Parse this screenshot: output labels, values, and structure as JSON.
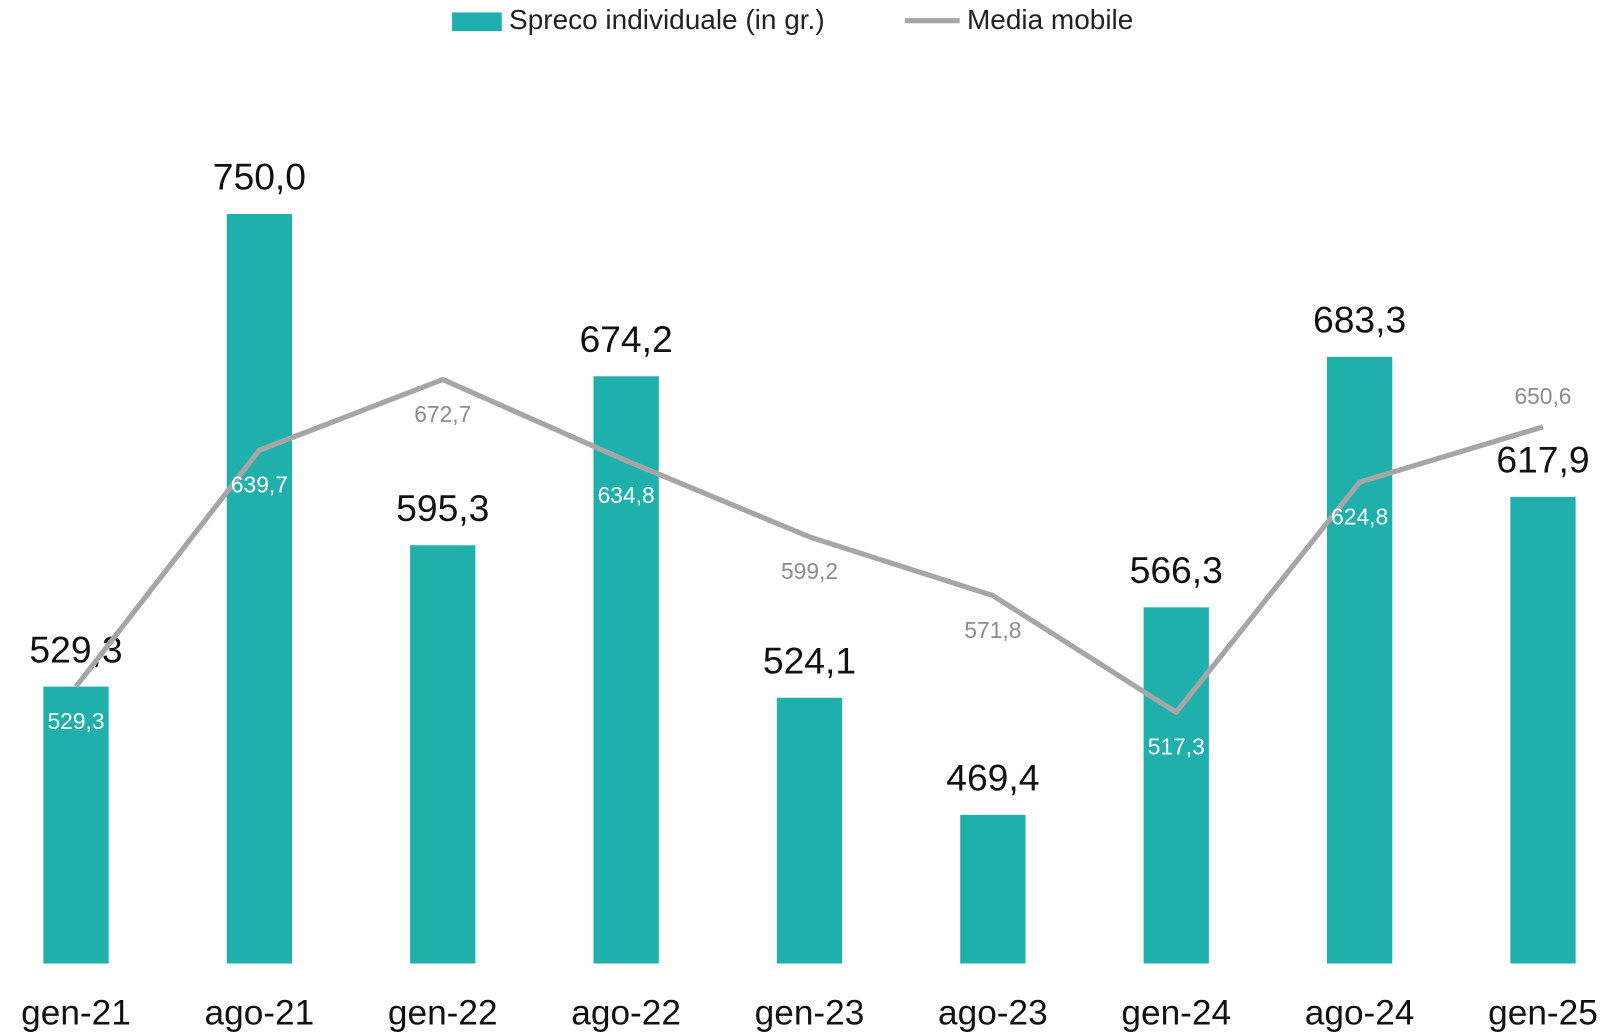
{
  "chart_data": {
    "type": "bar_line",
    "categories": [
      "gen-21",
      "ago-21",
      "gen-22",
      "ago-22",
      "gen-23",
      "ago-23",
      "gen-24",
      "ago-24",
      "gen-25"
    ],
    "series": [
      {
        "name": "Spreco individuale (in gr.)",
        "type": "bar",
        "color": "#1fb0ab",
        "values": [
          529.3,
          750.0,
          595.3,
          674.2,
          524.1,
          469.4,
          566.3,
          683.3,
          617.9
        ],
        "value_labels": [
          "529,3",
          "750,0",
          "595,3",
          "674,2",
          "524,1",
          "469,4",
          "566,3",
          "683,3",
          "617,9"
        ]
      },
      {
        "name": "Media mobile",
        "type": "line",
        "color": "#a6a6a6",
        "values": [
          529.3,
          639.7,
          672.7,
          634.8,
          599.2,
          571.8,
          517.3,
          624.8,
          650.6
        ],
        "value_labels": [
          "529,3",
          "639,7",
          "672,7",
          "634,8",
          "599,2",
          "571,8",
          "517,3",
          "624,8",
          "650,6"
        ]
      }
    ],
    "ylim": [
      400,
      800
    ],
    "legend": "top"
  }
}
